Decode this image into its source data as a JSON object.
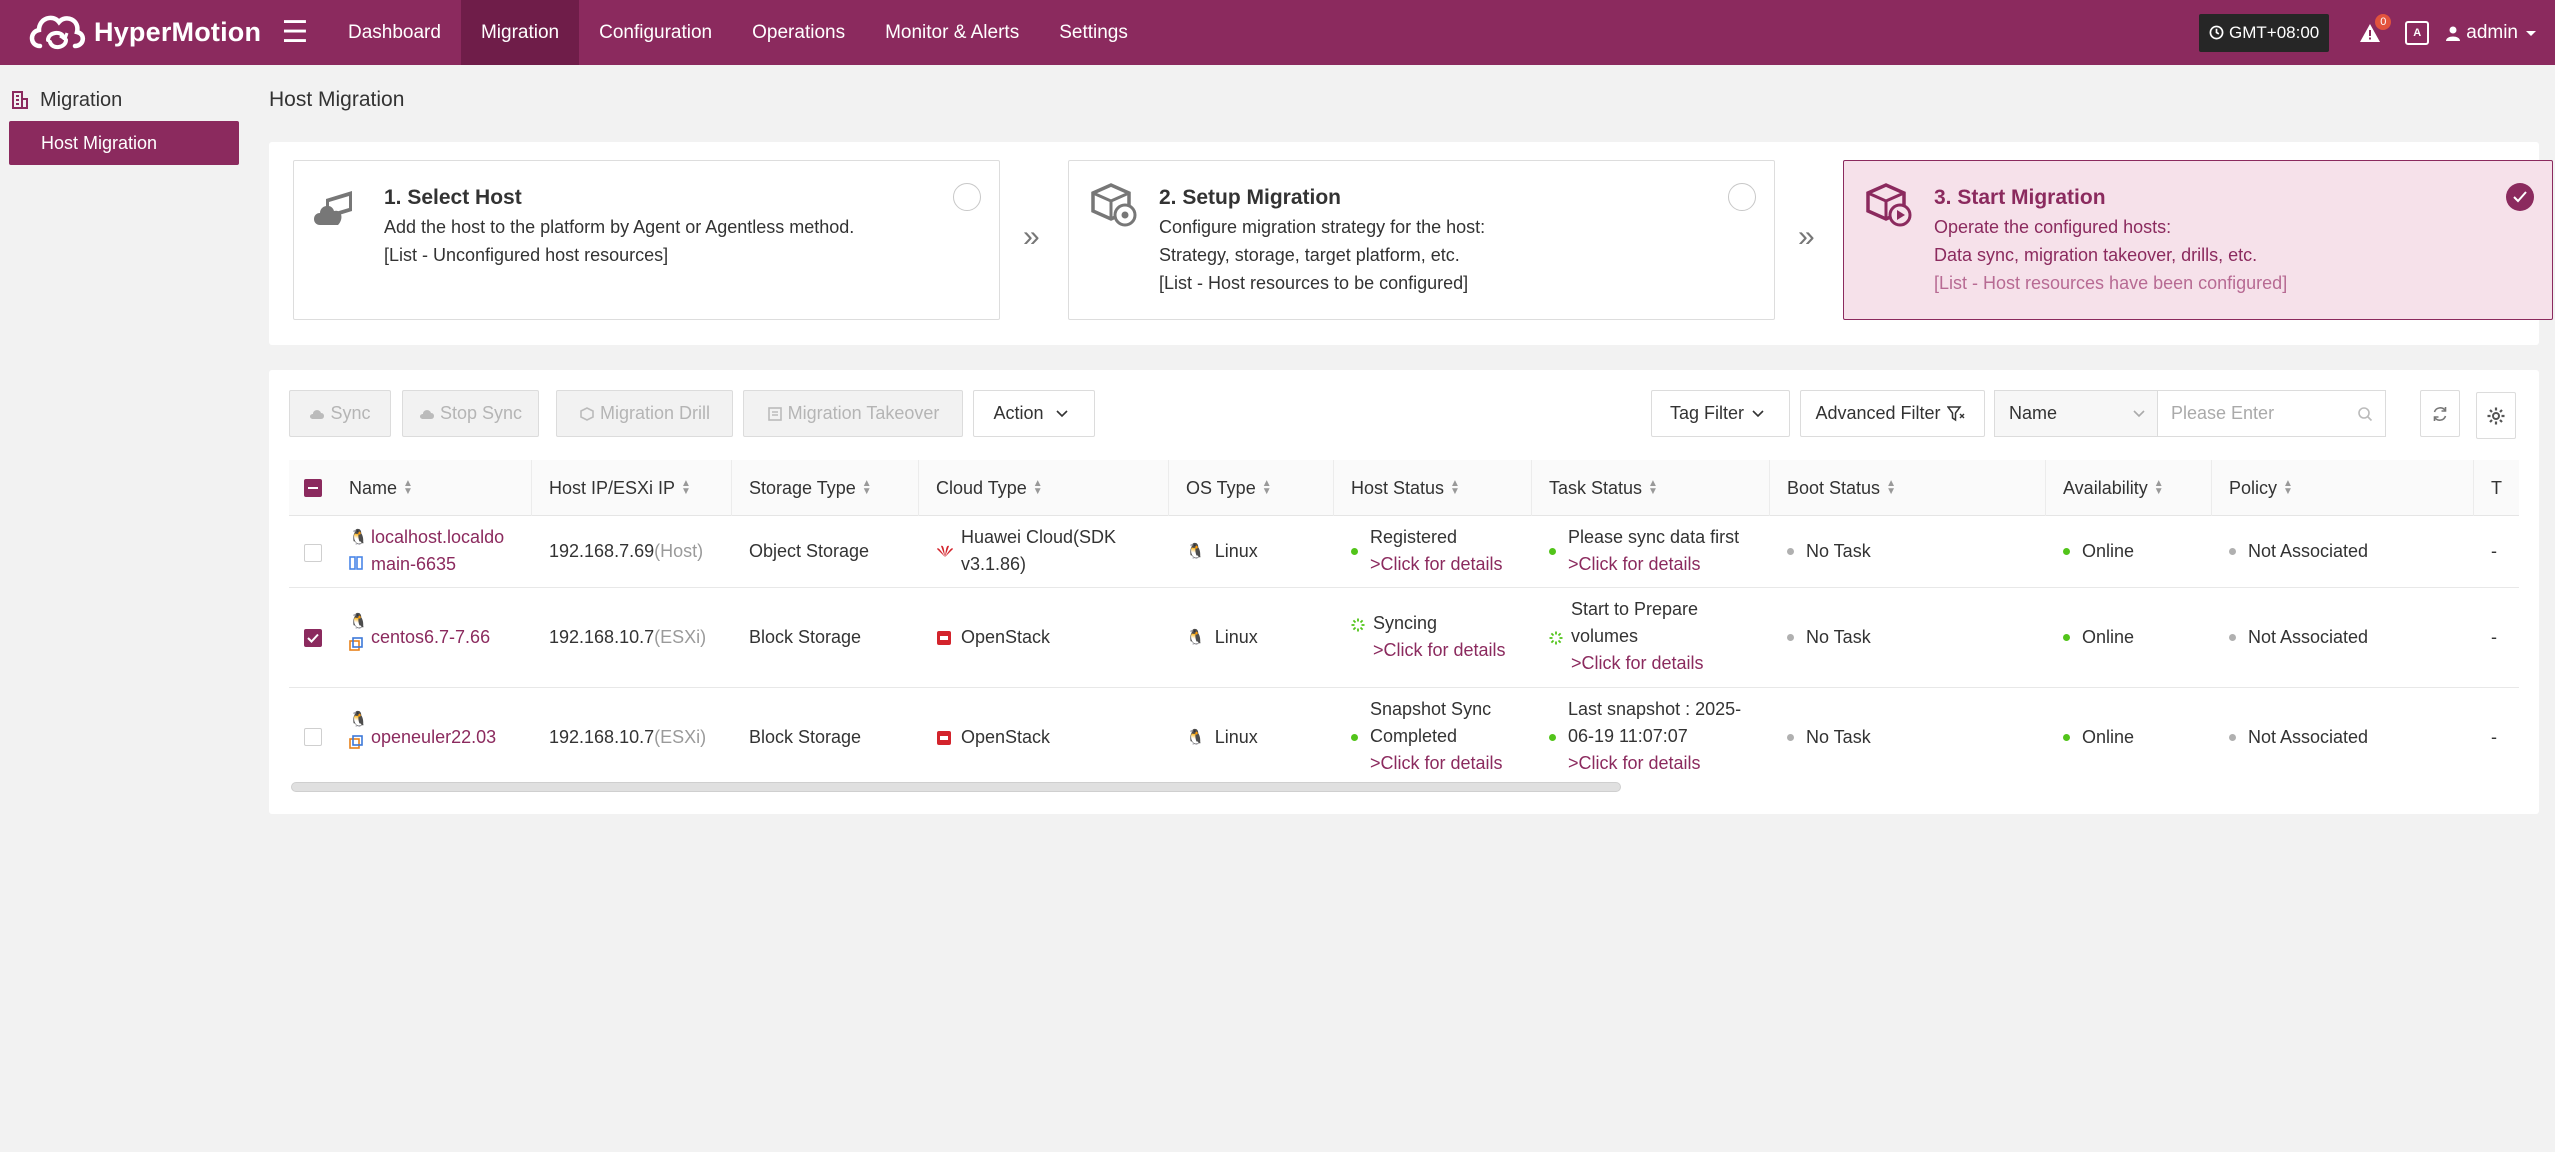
{
  "brand": {
    "name": "HyperMotion"
  },
  "nav": {
    "items": [
      {
        "label": "Dashboard"
      },
      {
        "label": "Migration"
      },
      {
        "label": "Configuration"
      },
      {
        "label": "Operations"
      },
      {
        "label": "Monitor & Alerts"
      },
      {
        "label": "Settings"
      }
    ],
    "active": "Migration"
  },
  "header": {
    "timezone": "GMT+08:00",
    "alert_count": "0",
    "user": "admin"
  },
  "sidebar": {
    "group": "Migration",
    "items": [
      {
        "label": "Host Migration"
      }
    ]
  },
  "page": {
    "title": "Host Migration"
  },
  "steps": [
    {
      "title": "1. Select Host",
      "desc": "Add the host to the platform by Agent or Agentless method.",
      "desc2": "",
      "list": "[List - Unconfigured host resources]"
    },
    {
      "title": "2. Setup Migration",
      "desc": "Configure migration strategy for the host:",
      "desc2": "Strategy, storage, target platform, etc.",
      "list": "[List - Host resources to be configured]"
    },
    {
      "title": "3. Start Migration",
      "desc": "Operate the configured hosts:",
      "desc2": "Data sync, migration takeover, drills, etc.",
      "list": "[List - Host resources have been configured]"
    }
  ],
  "toolbar": {
    "sync": "Sync",
    "stop_sync": "Stop Sync",
    "drill": "Migration Drill",
    "takeover": "Migration Takeover",
    "action": "Action",
    "tag_filter": "Tag Filter",
    "advanced_filter": "Advanced Filter",
    "search_field": "Name",
    "search_placeholder": "Please Enter"
  },
  "table": {
    "columns": [
      "Name",
      "Host IP/ESXi IP",
      "Storage Type",
      "Cloud Type",
      "OS Type",
      "Host Status",
      "Task Status",
      "Boot Status",
      "Availability",
      "Policy",
      "T"
    ],
    "rows": [
      {
        "checked": false,
        "name_line1": "localhost.localdo",
        "name_line2": "main-6635",
        "ip": "192.168.7.69",
        "ip_kind": "(Host)",
        "storage": "Object Storage",
        "cloud_line1": "Huawei Cloud(SDK",
        "cloud_line2": "v3.1.86)",
        "os": "Linux",
        "host_status": "Registered",
        "host_status_link": ">Click for details",
        "task_status_line1": "Please sync data first",
        "task_status_line2": "",
        "task_status_link": ">Click for details",
        "boot": "No Task",
        "availability": "Online",
        "policy": "Not Associated",
        "last": "-"
      },
      {
        "checked": true,
        "name_line1": "centos6.7-7.66",
        "name_line2": "",
        "ip": "192.168.10.7",
        "ip_kind": "(ESXi)",
        "storage": "Block Storage",
        "cloud_line1": "OpenStack",
        "cloud_line2": "",
        "os": "Linux",
        "host_status": "Syncing",
        "host_status_link": ">Click for details",
        "task_status_line1": "Start to Prepare",
        "task_status_line2": "volumes",
        "task_status_link": ">Click for details",
        "boot": "No Task",
        "availability": "Online",
        "policy": "Not Associated",
        "last": "-"
      },
      {
        "checked": false,
        "name_line1": "openeuler22.03",
        "name_line2": "",
        "ip": "192.168.10.7",
        "ip_kind": "(ESXi)",
        "storage": "Block Storage",
        "cloud_line1": "OpenStack",
        "cloud_line2": "",
        "os": "Linux",
        "host_status": "Snapshot Sync",
        "host_status_line2": "Completed",
        "host_status_link": ">Click for details",
        "task_status_line1": "Last snapshot : 2025-",
        "task_status_line2": "06-19 11:07:07",
        "task_status_link": ">Click for details",
        "boot": "No Task",
        "availability": "Online",
        "policy": "Not Associated",
        "last": "-"
      }
    ]
  },
  "colors": {
    "brand": "#8b2a5e",
    "brand_dark": "#6f1d49",
    "online": "#52c41a"
  }
}
